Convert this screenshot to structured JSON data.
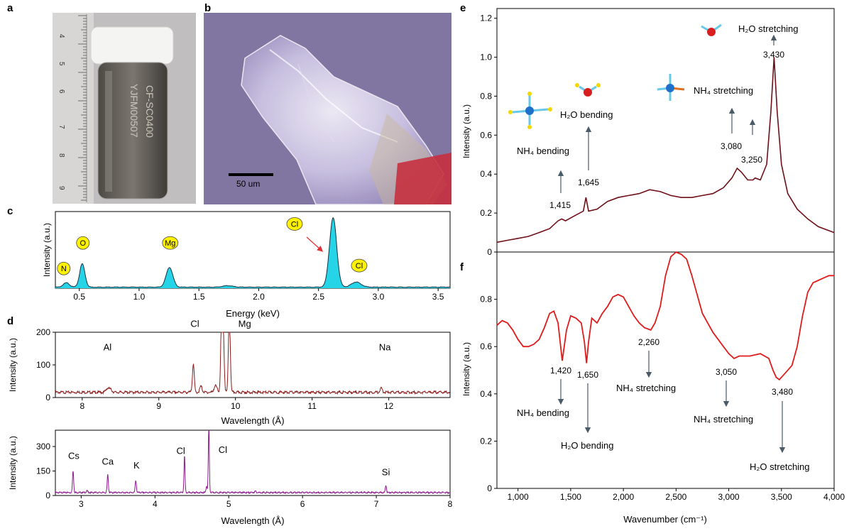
{
  "panel_labels": {
    "a": "a",
    "b": "b",
    "c": "c",
    "d": "d",
    "e": "e",
    "f": "f"
  },
  "panel_a": {
    "ruler_numbers": [
      "4",
      "5",
      "6",
      "7",
      "8",
      "9"
    ],
    "vial_text_line1": "CF-SC0400",
    "vial_text_line2": "YJFM00507",
    "colors": {
      "background": "#bfbdbd",
      "cap": "#f2f2f2",
      "vial": "#6b6760"
    }
  },
  "panel_b": {
    "scale_bar_label": "50 um",
    "colors": {
      "background": "#7d6f9b",
      "crystal": "#ddd8ee",
      "red": "#c23040"
    }
  },
  "chart_data": [
    {
      "id": "c",
      "type": "line",
      "xlabel": "Energy (keV)",
      "ylabel": "Intensity (a.u.)",
      "xlim": [
        0.3,
        3.6
      ],
      "ylim": [
        0,
        1.05
      ],
      "xticks": [
        0.5,
        1.0,
        1.5,
        2.0,
        2.5,
        3.0,
        3.5
      ],
      "xtick_labels": [
        "0.5",
        "1.0",
        "1.5",
        "2.0",
        "2.5",
        "3.0",
        "3.5"
      ],
      "peaks": [
        {
          "center": 0.392,
          "height": 0.06,
          "width": 0.025
        },
        {
          "center": 0.525,
          "height": 0.32,
          "width": 0.022
        },
        {
          "center": 1.254,
          "height": 0.27,
          "width": 0.028
        },
        {
          "center": 1.74,
          "height": 0.02,
          "width": 0.04
        },
        {
          "center": 2.622,
          "height": 0.95,
          "width": 0.03
        },
        {
          "center": 2.815,
          "height": 0.07,
          "width": 0.04
        }
      ],
      "baseline": 0.015,
      "annotations": [
        {
          "label": "N",
          "x": 0.37,
          "y": 0.27
        },
        {
          "label": "O",
          "x": 0.53,
          "y": 0.62
        },
        {
          "label": "Mg",
          "x": 1.26,
          "y": 0.62
        },
        {
          "label": "Cl",
          "x": 2.3,
          "y": 0.88
        },
        {
          "label": "Cl",
          "x": 2.84,
          "y": 0.31
        }
      ],
      "colors": {
        "fill": "#25d4e6",
        "line": "#1a3040",
        "badge": "#fff200",
        "arrow": "#e03030"
      }
    },
    {
      "id": "d-top",
      "type": "line",
      "xlabel": "Wavelength (Å)",
      "ylabel": "Intensity (a.u.)",
      "xlim": [
        7.65,
        12.8
      ],
      "ylim": [
        0,
        200
      ],
      "xticks": [
        8,
        9,
        10,
        11,
        12
      ],
      "xtick_labels": [
        "8",
        "9",
        "10",
        "11",
        "12"
      ],
      "yticks": [
        0,
        100,
        200
      ],
      "ytick_labels": [
        "0",
        "100",
        "200"
      ],
      "peaks": [
        {
          "center": 8.33,
          "height": 12,
          "width": 0.02
        },
        {
          "center": 8.37,
          "height": 8,
          "width": 0.02
        },
        {
          "center": 9.45,
          "height": 88,
          "width": 0.012
        },
        {
          "center": 9.55,
          "height": 18,
          "width": 0.015
        },
        {
          "center": 9.74,
          "height": 20,
          "width": 0.02
        },
        {
          "center": 9.82,
          "height": 240,
          "width": 0.012
        },
        {
          "center": 9.84,
          "height": 170,
          "width": 0.012
        },
        {
          "center": 9.92,
          "height": 240,
          "width": 0.012
        },
        {
          "center": 11.9,
          "height": 12,
          "width": 0.015
        }
      ],
      "baseline": 16,
      "annotations": [
        {
          "label": "Al",
          "x": 8.33,
          "y": 145
        },
        {
          "label": "Cl",
          "x": 9.47,
          "y": 265
        },
        {
          "label": "Mg",
          "x": 10.12,
          "y": 290
        },
        {
          "label": "Na",
          "x": 11.95,
          "y": 145
        }
      ],
      "color": "#8b1a1a"
    },
    {
      "id": "d-bottom",
      "type": "line",
      "xlabel": "Wavelength (Å)",
      "ylabel": "Intensity (a.u.)",
      "xlim": [
        2.65,
        8.0
      ],
      "ylim": [
        0,
        400
      ],
      "xticks": [
        3,
        4,
        5,
        6,
        7,
        8
      ],
      "xtick_labels": [
        "3",
        "4",
        "5",
        "6",
        "7",
        "8"
      ],
      "yticks": [
        0,
        150,
        300
      ],
      "ytick_labels": [
        "0",
        "150",
        "300"
      ],
      "peaks": [
        {
          "center": 2.89,
          "height": 135,
          "width": 0.008
        },
        {
          "center": 3.08,
          "height": 10,
          "width": 0.01
        },
        {
          "center": 3.36,
          "height": 110,
          "width": 0.008
        },
        {
          "center": 3.74,
          "height": 75,
          "width": 0.008
        },
        {
          "center": 4.4,
          "height": 225,
          "width": 0.007
        },
        {
          "center": 4.7,
          "height": 40,
          "width": 0.008
        },
        {
          "center": 4.73,
          "height": 410,
          "width": 0.007
        },
        {
          "center": 5.36,
          "height": 8,
          "width": 0.01
        },
        {
          "center": 7.13,
          "height": 45,
          "width": 0.008
        }
      ],
      "baseline": 18,
      "annotations": [
        {
          "label": "Cs",
          "x": 2.9,
          "y": 225
        },
        {
          "label": "Ca",
          "x": 3.36,
          "y": 190
        },
        {
          "label": "K",
          "x": 3.75,
          "y": 165
        },
        {
          "label": "Cl",
          "x": 4.35,
          "y": 255
        },
        {
          "label": "Cl",
          "x": 4.92,
          "y": 260
        },
        {
          "label": "Si",
          "x": 7.13,
          "y": 125
        }
      ],
      "color": "#8e1a8e"
    },
    {
      "id": "e",
      "type": "line",
      "xlabel": "Wavenumber (cm⁻¹)",
      "ylabel": "Intensity (a.u.)",
      "xlim": [
        800,
        4000
      ],
      "ylim": [
        0,
        1.25
      ],
      "yticks": [
        0,
        0.2,
        0.4,
        0.6,
        0.8,
        1.0,
        1.2
      ],
      "ytick_labels": [
        "0",
        "0.2",
        "0.4",
        "0.6",
        "0.8",
        "1.0",
        "1.2"
      ],
      "points": [
        [
          800,
          0.05
        ],
        [
          900,
          0.06
        ],
        [
          1000,
          0.07
        ],
        [
          1100,
          0.08
        ],
        [
          1200,
          0.1
        ],
        [
          1300,
          0.12
        ],
        [
          1380,
          0.16
        ],
        [
          1415,
          0.17
        ],
        [
          1450,
          0.16
        ],
        [
          1550,
          0.19
        ],
        [
          1620,
          0.21
        ],
        [
          1645,
          0.28
        ],
        [
          1670,
          0.21
        ],
        [
          1750,
          0.22
        ],
        [
          1850,
          0.26
        ],
        [
          1950,
          0.28
        ],
        [
          2050,
          0.29
        ],
        [
          2150,
          0.3
        ],
        [
          2250,
          0.32
        ],
        [
          2350,
          0.31
        ],
        [
          2450,
          0.29
        ],
        [
          2550,
          0.28
        ],
        [
          2650,
          0.28
        ],
        [
          2750,
          0.29
        ],
        [
          2850,
          0.3
        ],
        [
          2950,
          0.33
        ],
        [
          3030,
          0.38
        ],
        [
          3080,
          0.43
        ],
        [
          3120,
          0.41
        ],
        [
          3180,
          0.37
        ],
        [
          3230,
          0.37
        ],
        [
          3250,
          0.38
        ],
        [
          3300,
          0.37
        ],
        [
          3360,
          0.45
        ],
        [
          3400,
          0.72
        ],
        [
          3430,
          1.0
        ],
        [
          3460,
          0.72
        ],
        [
          3500,
          0.45
        ],
        [
          3560,
          0.3
        ],
        [
          3650,
          0.22
        ],
        [
          3750,
          0.17
        ],
        [
          3850,
          0.13
        ],
        [
          4000,
          0.1
        ]
      ],
      "annotations": [
        {
          "label": "1,415",
          "x": 1415
        },
        {
          "label": "1,645",
          "x": 1645
        },
        {
          "label": "3,080",
          "x": 3080
        },
        {
          "label": "3,250",
          "x": 3250
        },
        {
          "label": "3,430",
          "x": 3430
        },
        {
          "label": "NH₄ bending"
        },
        {
          "label": "H₂O bending"
        },
        {
          "label": "NH₄ stretching"
        },
        {
          "label": "H₂O stretching"
        }
      ],
      "color": "#6e1018"
    },
    {
      "id": "f",
      "type": "line",
      "xlabel": "Wavenumber (cm⁻¹)",
      "ylabel": "Intensity (a.u.)",
      "xlim": [
        800,
        4000
      ],
      "ylim": [
        0,
        1.0
      ],
      "xticks": [
        1000,
        1500,
        2000,
        2500,
        3000,
        3500,
        4000
      ],
      "xtick_labels": [
        "1,000",
        "1,500",
        "2,000",
        "2,500",
        "3,000",
        "3,500",
        "4,000"
      ],
      "yticks": [
        0,
        0.2,
        0.4,
        0.6,
        0.8
      ],
      "ytick_labels": [
        "0",
        "0.2",
        "0.4",
        "0.6",
        "0.8"
      ],
      "points": [
        [
          800,
          0.69
        ],
        [
          850,
          0.71
        ],
        [
          900,
          0.7
        ],
        [
          950,
          0.67
        ],
        [
          1000,
          0.63
        ],
        [
          1050,
          0.6
        ],
        [
          1100,
          0.6
        ],
        [
          1150,
          0.61
        ],
        [
          1200,
          0.63
        ],
        [
          1250,
          0.68
        ],
        [
          1300,
          0.74
        ],
        [
          1340,
          0.75
        ],
        [
          1380,
          0.7
        ],
        [
          1420,
          0.54
        ],
        [
          1460,
          0.67
        ],
        [
          1500,
          0.73
        ],
        [
          1550,
          0.72
        ],
        [
          1600,
          0.7
        ],
        [
          1630,
          0.62
        ],
        [
          1650,
          0.53
        ],
        [
          1670,
          0.62
        ],
        [
          1700,
          0.72
        ],
        [
          1750,
          0.7
        ],
        [
          1800,
          0.74
        ],
        [
          1850,
          0.77
        ],
        [
          1900,
          0.81
        ],
        [
          1950,
          0.82
        ],
        [
          2000,
          0.81
        ],
        [
          2050,
          0.77
        ],
        [
          2100,
          0.73
        ],
        [
          2150,
          0.7
        ],
        [
          2200,
          0.68
        ],
        [
          2260,
          0.67
        ],
        [
          2300,
          0.7
        ],
        [
          2350,
          0.77
        ],
        [
          2400,
          0.9
        ],
        [
          2450,
          0.98
        ],
        [
          2500,
          1.0
        ],
        [
          2550,
          0.99
        ],
        [
          2600,
          0.97
        ],
        [
          2650,
          0.9
        ],
        [
          2700,
          0.82
        ],
        [
          2750,
          0.74
        ],
        [
          2800,
          0.7
        ],
        [
          2850,
          0.66
        ],
        [
          2900,
          0.63
        ],
        [
          2950,
          0.6
        ],
        [
          3000,
          0.57
        ],
        [
          3050,
          0.55
        ],
        [
          3100,
          0.56
        ],
        [
          3200,
          0.56
        ],
        [
          3300,
          0.57
        ],
        [
          3380,
          0.55
        ],
        [
          3420,
          0.5
        ],
        [
          3450,
          0.47
        ],
        [
          3480,
          0.46
        ],
        [
          3520,
          0.48
        ],
        [
          3600,
          0.52
        ],
        [
          3650,
          0.6
        ],
        [
          3700,
          0.73
        ],
        [
          3750,
          0.83
        ],
        [
          3800,
          0.87
        ],
        [
          3850,
          0.88
        ],
        [
          3900,
          0.89
        ],
        [
          3950,
          0.9
        ],
        [
          4000,
          0.9
        ]
      ],
      "annotations": [
        {
          "label": "1,420",
          "x": 1420
        },
        {
          "label": "1,650",
          "x": 1650
        },
        {
          "label": "2,260",
          "x": 2260
        },
        {
          "label": "3,050",
          "x": 3050
        },
        {
          "label": "3,480",
          "x": 3480
        },
        {
          "label": "NH₄ bending"
        },
        {
          "label": "H₂O bending"
        },
        {
          "label": "NH₄ stretching"
        },
        {
          "label": "NH₄ stretching"
        },
        {
          "label": "H₂O stretching"
        }
      ],
      "color": "#e01b1b"
    }
  ]
}
